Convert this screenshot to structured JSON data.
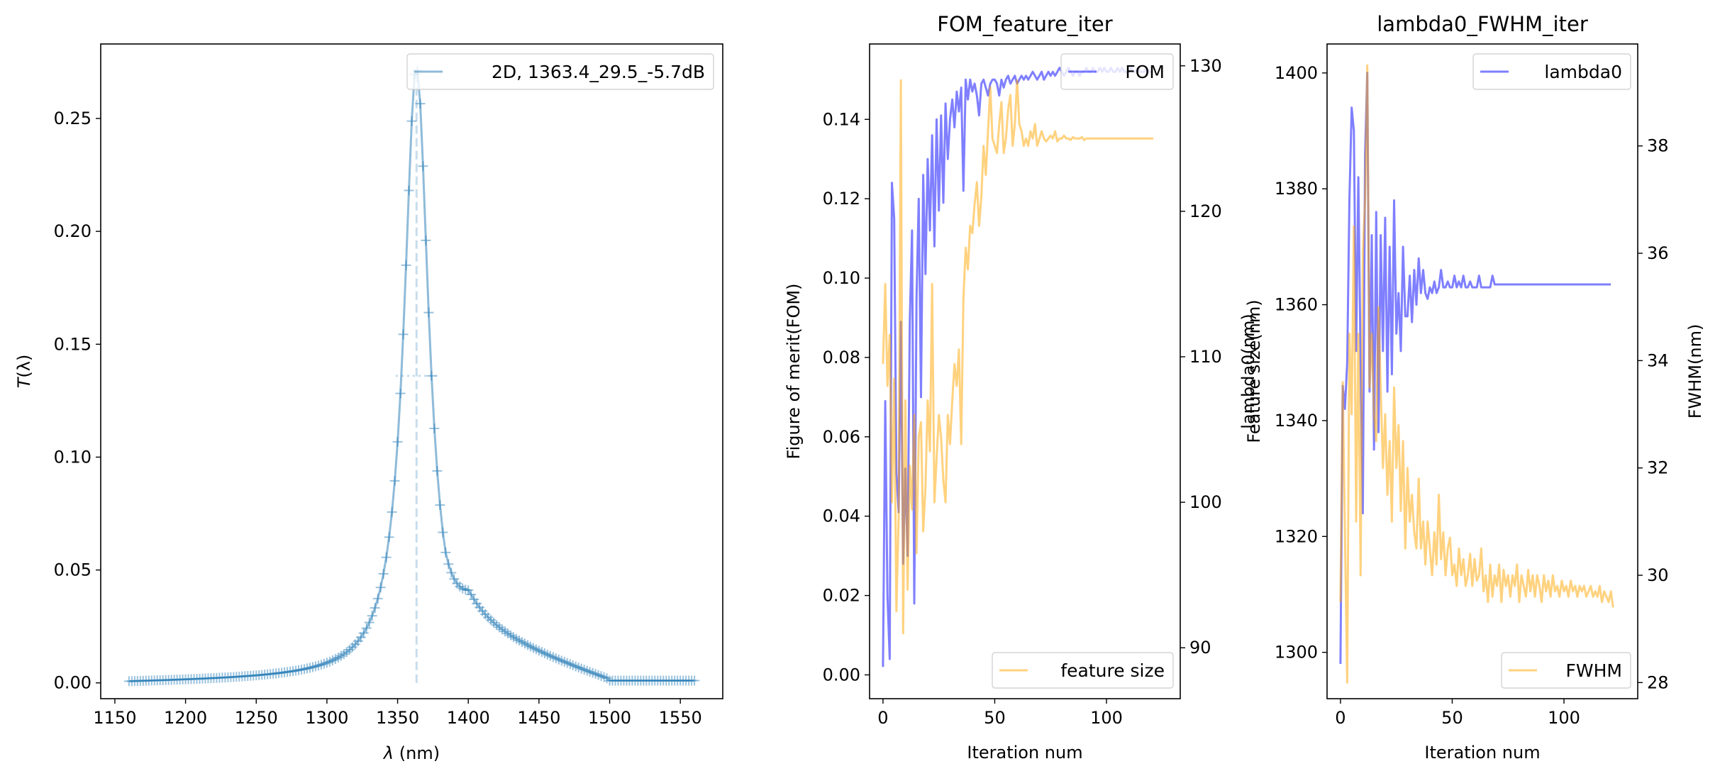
{
  "figure": {
    "background": "#ffffff"
  },
  "chart_data": [
    {
      "type": "line",
      "title": "",
      "xlabel_var": "λ",
      "xlabel_unit": " (nm)",
      "ylabel_var": "T",
      "ylabel_arg": "(λ)",
      "xlim": [
        1140,
        1580
      ],
      "ylim": [
        -0.007,
        0.283
      ],
      "xticks": [
        1150,
        1200,
        1250,
        1300,
        1350,
        1400,
        1450,
        1500,
        1550
      ],
      "yticks": [
        0.0,
        0.05,
        0.1,
        0.15,
        0.2,
        0.25
      ],
      "ytick_labels": [
        "0.00",
        "0.05",
        "0.10",
        "0.15",
        "0.20",
        "0.25"
      ],
      "grid": false,
      "legend_position": "top-right",
      "series": [
        {
          "name": "2D, 1363.4_29.5_-5.7dB",
          "color": "#1f77b4",
          "opacity": 0.5,
          "marker": "+",
          "x_start": 1160,
          "x_end": 1560,
          "x_step": 2,
          "peak_center": 1363.4,
          "peak_value": 0.272
        }
      ],
      "annotations": [
        {
          "kind": "vline",
          "x": 1363.4,
          "y_range": [
            0.0,
            0.272
          ],
          "style": "dashed"
        },
        {
          "kind": "hline",
          "y": 0.136,
          "x_range": [
            1348.7,
            1378.1
          ],
          "style": "dotted"
        }
      ]
    },
    {
      "type": "line",
      "title": "FOM_feature_iter",
      "xlabel": "Iteration num",
      "ylabel": "Figure of merit(FOM)",
      "ylabel_right": "Feature size(nm)",
      "xlim": [
        -6,
        133
      ],
      "ylim": [
        -0.006,
        0.159
      ],
      "ylim_right": [
        86.5,
        131.5
      ],
      "xticks": [
        0,
        50,
        100
      ],
      "yticks": [
        0.0,
        0.02,
        0.04,
        0.06,
        0.08,
        0.1,
        0.12,
        0.14
      ],
      "ytick_labels": [
        "0.00",
        "0.02",
        "0.04",
        "0.06",
        "0.08",
        "0.10",
        "0.12",
        "0.14"
      ],
      "yticks_right": [
        90,
        100,
        110,
        120,
        130
      ],
      "grid": false,
      "legend_position": "top-right",
      "legend_position_right": "bottom-right",
      "series": [
        {
          "name": "FOM",
          "axis": "left",
          "color": "#0000ff",
          "opacity": 0.5,
          "values": [
            0.002,
            0.069,
            0.02,
            0.004,
            0.124,
            0.115,
            0.051,
            0.041,
            0.089,
            0.028,
            0.052,
            0.03,
            0.089,
            0.112,
            0.018,
            0.095,
            0.12,
            0.07,
            0.126,
            0.101,
            0.13,
            0.112,
            0.136,
            0.108,
            0.14,
            0.117,
            0.141,
            0.119,
            0.144,
            0.13,
            0.14,
            0.145,
            0.138,
            0.147,
            0.142,
            0.148,
            0.122,
            0.15,
            0.145,
            0.15,
            0.147,
            0.149,
            0.146,
            0.141,
            0.149,
            0.15,
            0.148,
            0.146,
            0.149,
            0.15,
            0.15,
            0.149,
            0.146,
            0.15,
            0.148,
            0.15,
            0.151,
            0.149,
            0.15,
            0.151,
            0.149,
            0.15,
            0.151,
            0.15,
            0.151,
            0.15,
            0.151,
            0.152,
            0.151,
            0.15,
            0.151,
            0.152,
            0.15,
            0.151,
            0.152,
            0.151,
            0.152,
            0.151,
            0.152,
            0.153,
            0.152,
            0.151,
            0.152,
            0.153,
            0.152,
            0.151,
            0.152,
            0.152,
            0.151,
            0.152,
            0.152,
            0.153,
            0.152,
            0.152,
            0.153,
            0.152,
            0.152,
            0.153,
            0.152,
            0.153,
            0.152,
            0.152,
            0.153,
            0.152,
            0.152,
            0.153,
            0.152,
            0.153,
            0.152,
            0.152,
            0.152,
            0.153,
            0.152,
            0.152,
            0.153,
            0.152,
            0.152,
            0.152,
            0.153,
            0.152,
            0.152,
            0.152
          ]
        },
        {
          "name": "feature size",
          "axis": "right",
          "color": "#ffa500",
          "opacity": 0.5,
          "values": [
            109.5,
            115.0,
            108.0,
            111.5,
            100.0,
            108.5,
            92.5,
            99.0,
            129.0,
            91.0,
            107.0,
            94.0,
            102.5,
            99.5,
            106.0,
            96.5,
            104.5,
            105.5,
            98.0,
            101.0,
            107.0,
            103.5,
            115.0,
            100.0,
            103.0,
            106.0,
            104.5,
            101.5,
            100.0,
            106.0,
            104.0,
            107.0,
            109.5,
            108.0,
            110.5,
            104.0,
            114.0,
            117.5,
            116.0,
            119.0,
            118.5,
            120.5,
            122.0,
            119.0,
            121.0,
            124.5,
            122.5,
            125.5,
            128.5,
            125.0,
            124.5,
            124.0,
            126.0,
            127.5,
            124.0,
            125.0,
            127.0,
            128.0,
            124.5,
            126.0,
            129.0,
            126.0,
            125.5,
            124.5,
            125.0,
            124.5,
            125.5,
            125.0,
            126.0,
            124.5,
            125.0,
            125.5,
            125.0,
            124.8,
            125.0,
            125.2,
            125.0,
            125.5,
            124.8,
            125.0,
            125.0,
            125.2,
            125.0,
            125.0,
            124.9,
            125.1,
            125.0,
            125.0,
            125.0,
            125.1,
            124.9,
            125.0,
            125.0,
            125.0,
            125.0,
            125.0,
            125.0,
            125.0,
            125.0,
            125.0,
            125.0,
            125.0,
            125.0,
            125.0,
            125.0,
            125.0,
            125.0,
            125.0,
            125.0,
            125.0,
            125.0,
            125.0,
            125.0,
            125.0,
            125.0,
            125.0,
            125.0,
            125.0,
            125.0,
            125.0,
            125.0,
            125.0
          ]
        }
      ]
    },
    {
      "type": "line",
      "title": "lambda0_FWHM_iter",
      "xlabel": "Iteration num",
      "ylabel": "lambda0(nm)",
      "ylabel_right": "FWHM(nm)",
      "xlim": [
        -6,
        133
      ],
      "ylim": [
        1292,
        1405
      ],
      "ylim_right": [
        27.7,
        39.9
      ],
      "xticks": [
        0,
        50,
        100
      ],
      "yticks": [
        1300,
        1320,
        1340,
        1360,
        1380,
        1400
      ],
      "yticks_right": [
        28,
        30,
        32,
        34,
        36,
        38
      ],
      "grid": false,
      "legend_position": "top-right",
      "legend_position_right": "bottom-right",
      "series": [
        {
          "name": "lambda0",
          "axis": "left",
          "color": "#0000ff",
          "opacity": 0.5,
          "values": [
            1298,
            1346,
            1342,
            1350,
            1378,
            1394,
            1390,
            1352,
            1382,
            1350,
            1324,
            1386,
            1400,
            1345,
            1372,
            1335,
            1376,
            1338,
            1372,
            1352,
            1375,
            1345,
            1370,
            1348,
            1378,
            1355,
            1362,
            1352,
            1370,
            1358,
            1358,
            1365,
            1357,
            1366,
            1360,
            1368,
            1362,
            1366,
            1362,
            1361,
            1363,
            1362,
            1364,
            1362,
            1363,
            1366,
            1363,
            1363,
            1364,
            1363,
            1363,
            1365,
            1363,
            1364,
            1363,
            1365,
            1363,
            1363,
            1364,
            1363,
            1363,
            1363,
            1365,
            1363,
            1363,
            1363,
            1363,
            1363,
            1365,
            1363.5,
            1363.5,
            1363.5,
            1363.5,
            1363.5,
            1363.5,
            1363.5,
            1363.5,
            1363.5,
            1363.5,
            1363.5,
            1363.5,
            1363.5,
            1363.5,
            1363.5,
            1363.5,
            1363.5,
            1363.5,
            1363.5,
            1363.5,
            1363.5,
            1363.5,
            1363.5,
            1363.5,
            1363.5,
            1363.5,
            1363.5,
            1363.5,
            1363.5,
            1363.5,
            1363.5,
            1363.5,
            1363.5,
            1363.5,
            1363.5,
            1363.5,
            1363.5,
            1363.5,
            1363.5,
            1363.5,
            1363.5,
            1363.5,
            1363.5,
            1363.5,
            1363.5,
            1363.5,
            1363.5,
            1363.5,
            1363.5,
            1363.5,
            1363.5,
            1363.5,
            1363.5
          ]
        },
        {
          "name": "FWHM",
          "axis": "right",
          "color": "#ffa500",
          "opacity": 0.5,
          "values": [
            29.5,
            33.6,
            30.8,
            28.0,
            34.5,
            33.0,
            36.5,
            31.0,
            34.5,
            30.0,
            36.0,
            37.0,
            39.5,
            33.5,
            34.5,
            33.0,
            32.5,
            35.0,
            33.5,
            32.0,
            33.0,
            31.5,
            32.5,
            31.0,
            33.5,
            32.0,
            32.8,
            31.2,
            32.5,
            30.5,
            32.0,
            31.0,
            31.5,
            30.8,
            30.5,
            31.8,
            30.5,
            31.0,
            30.2,
            31.0,
            30.5,
            30.0,
            30.8,
            30.2,
            31.5,
            30.3,
            30.8,
            30.0,
            30.5,
            30.7,
            30.0,
            30.2,
            29.8,
            30.5,
            30.0,
            30.3,
            29.8,
            30.0,
            30.4,
            29.8,
            30.3,
            29.9,
            30.0,
            30.5,
            29.7,
            30.0,
            29.5,
            30.2,
            29.6,
            30.0,
            29.8,
            30.2,
            29.5,
            30.1,
            29.8,
            30.0,
            29.6,
            30.0,
            29.8,
            30.2,
            29.5,
            30.0,
            29.8,
            29.6,
            30.1,
            29.7,
            30.0,
            29.6,
            30.0,
            29.8,
            29.5,
            30.0,
            29.7,
            29.9,
            29.6,
            30.0,
            29.7,
            29.8,
            29.6,
            29.9,
            29.7,
            29.8,
            29.6,
            29.9,
            29.7,
            29.8,
            29.6,
            29.8,
            29.7,
            29.8,
            29.6,
            29.7,
            29.8,
            29.6,
            29.7,
            29.6,
            29.8,
            29.5,
            29.7,
            29.6,
            29.5,
            29.7,
            29.4
          ]
        }
      ]
    }
  ]
}
